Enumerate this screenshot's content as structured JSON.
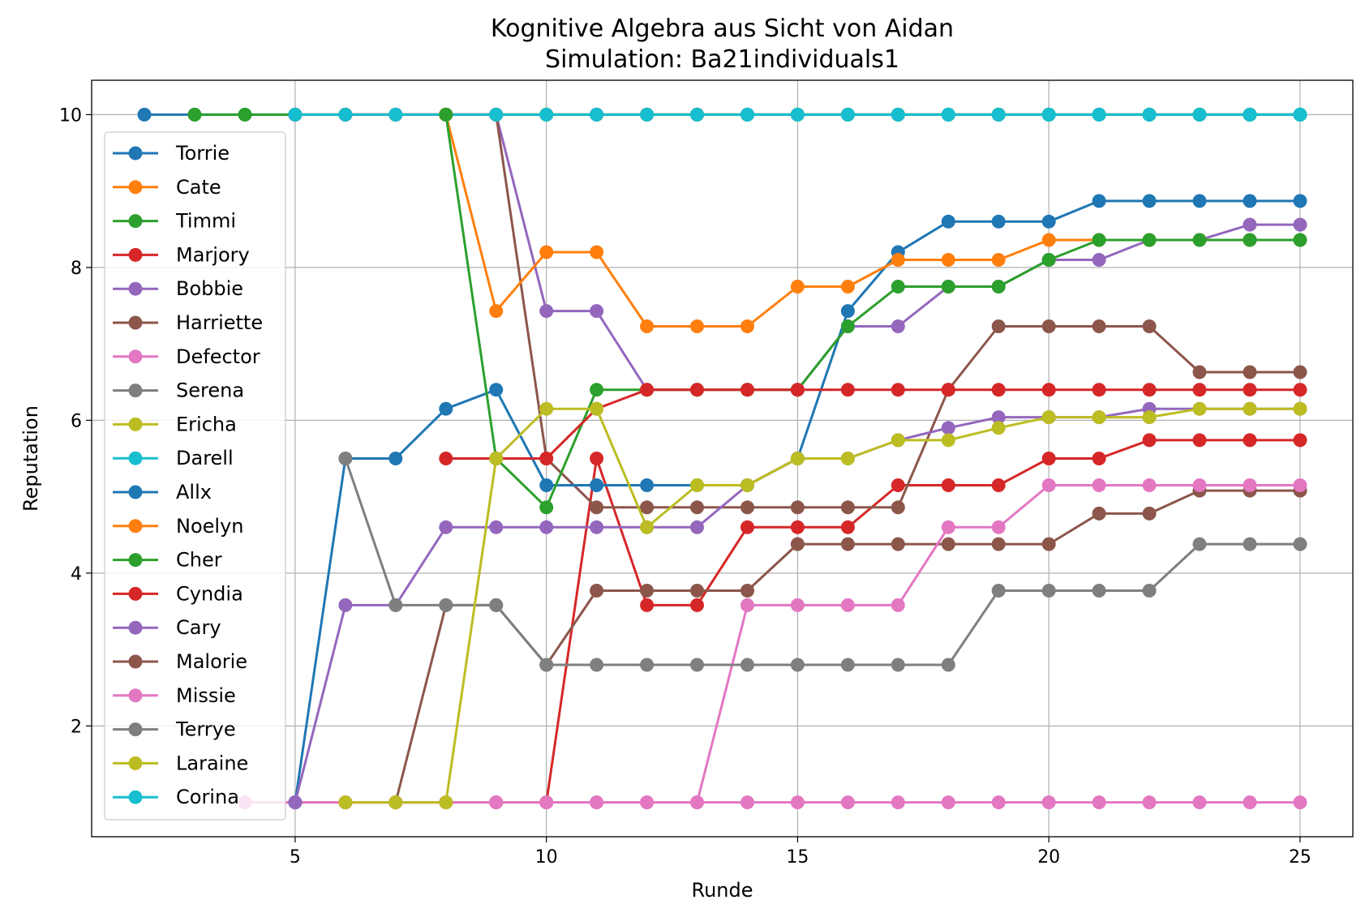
{
  "chart_data": {
    "type": "line",
    "title": "Kognitive Algebra aus Sicht von Aidan",
    "subtitle": "Simulation: Ba21individuals1",
    "xlabel": "Runde",
    "ylabel": "Reputation",
    "xlim": [
      0.95,
      26.05
    ],
    "ylim": [
      0.55,
      10.45
    ],
    "xticks": [
      5,
      10,
      15,
      20,
      25
    ],
    "yticks": [
      2,
      4,
      6,
      8,
      10
    ],
    "grid": true,
    "legend_position": "left",
    "series": [
      {
        "name": "Torrie",
        "color": "#1f77b4",
        "x": [
          2,
          3,
          4,
          5,
          6,
          7,
          8,
          9,
          10,
          11,
          12,
          13,
          14,
          15,
          16,
          17,
          18,
          19,
          20,
          21,
          22,
          23,
          24,
          25
        ],
        "y": [
          10,
          10,
          10,
          10,
          10,
          10,
          10,
          10,
          10,
          10,
          10,
          10,
          10,
          10,
          10,
          10,
          10,
          10,
          10,
          10,
          10,
          10,
          10,
          10
        ]
      },
      {
        "name": "Cate",
        "color": "#ff7f0e",
        "x": [
          5,
          6,
          7,
          8,
          9,
          10,
          11,
          12,
          13,
          14,
          15,
          16,
          17,
          18,
          19,
          20,
          21,
          22,
          23,
          24,
          25
        ],
        "y": [
          10,
          10,
          10,
          10,
          10,
          10,
          10,
          10,
          10,
          10,
          10,
          10,
          10,
          10,
          10,
          10,
          10,
          10,
          10,
          10,
          10
        ]
      },
      {
        "name": "Timmi",
        "color": "#2ca02c",
        "x": [
          3,
          4,
          5,
          6,
          7,
          8,
          9,
          10,
          11,
          12,
          13,
          14,
          15,
          16,
          17,
          18,
          19,
          20,
          21,
          22,
          23,
          24,
          25
        ],
        "y": [
          10,
          10,
          10,
          10,
          10,
          10,
          10,
          10,
          10,
          10,
          10,
          10,
          10,
          10,
          10,
          10,
          10,
          10,
          10,
          10,
          10,
          10,
          10
        ]
      },
      {
        "name": "Marjory",
        "color": "#d62728",
        "x": [
          4,
          5,
          6,
          7,
          8,
          9,
          10,
          11,
          12,
          13,
          14,
          15,
          16,
          17,
          18,
          19,
          20,
          21,
          22,
          23,
          24,
          25
        ],
        "y": [
          1,
          1,
          1,
          1,
          1,
          1,
          1,
          5.5,
          3.58,
          3.58,
          4.6,
          4.6,
          4.6,
          5.15,
          5.15,
          5.15,
          5.5,
          5.5,
          5.74,
          5.74,
          5.74,
          5.74
        ]
      },
      {
        "name": "Bobbie",
        "color": "#9467bd",
        "x": [
          5,
          6,
          7,
          8,
          9,
          10,
          11,
          12,
          13,
          14,
          15,
          16,
          17,
          18,
          19,
          20,
          21,
          22,
          23,
          24,
          25
        ],
        "y": [
          10,
          10,
          10,
          10,
          10,
          7.43,
          7.43,
          6.4,
          6.4,
          6.4,
          6.4,
          7.23,
          7.23,
          7.75,
          7.75,
          8.1,
          8.1,
          8.36,
          8.36,
          8.56,
          8.56
        ]
      },
      {
        "name": "Harriette",
        "color": "#8c564b",
        "x": [
          6,
          7,
          8,
          9,
          10,
          11,
          12,
          13,
          14,
          15,
          16,
          17,
          18,
          19,
          20,
          21,
          22,
          23,
          24,
          25
        ],
        "y": [
          10,
          10,
          10,
          10,
          5.5,
          4.86,
          4.86,
          4.86,
          4.86,
          4.86,
          4.86,
          4.86,
          6.4,
          7.23,
          7.23,
          7.23,
          7.23,
          6.63,
          6.63,
          6.63
        ]
      },
      {
        "name": "Defector",
        "color": "#e377c2",
        "x": [
          4,
          5,
          6,
          7,
          8,
          9,
          10,
          11,
          12,
          13,
          14,
          15,
          16,
          17,
          18,
          19,
          20,
          21,
          22,
          23,
          24,
          25
        ],
        "y": [
          1,
          1,
          1,
          1,
          1,
          1,
          1,
          1,
          1,
          1,
          1,
          1,
          1,
          1,
          1,
          1,
          1,
          1,
          1,
          1,
          1,
          1
        ]
      },
      {
        "name": "Serena",
        "color": "#7f7f7f",
        "x": [
          11,
          12,
          13,
          14,
          15,
          16,
          17,
          18,
          19,
          20,
          21,
          22,
          23,
          24,
          25
        ],
        "y": [
          10,
          10,
          10,
          10,
          10,
          10,
          10,
          10,
          10,
          10,
          10,
          10,
          10,
          10,
          10
        ]
      },
      {
        "name": "Ericha",
        "color": "#bcbd22",
        "x": [
          12,
          13,
          14,
          15,
          16,
          17,
          18,
          19,
          20,
          21,
          22,
          23,
          24,
          25
        ],
        "y": [
          10,
          10,
          10,
          10,
          10,
          10,
          10,
          10,
          10,
          10,
          10,
          10,
          10,
          10
        ]
      },
      {
        "name": "Darell",
        "color": "#17becf",
        "x": [
          5,
          6,
          7,
          8,
          9,
          10,
          11,
          12,
          13,
          14,
          15,
          16,
          17,
          18,
          19,
          20,
          21,
          22,
          23,
          24,
          25
        ],
        "y": [
          10,
          10,
          10,
          10,
          10,
          10,
          10,
          10,
          10,
          10,
          10,
          10,
          10,
          10,
          10,
          10,
          10,
          10,
          10,
          10,
          10
        ]
      },
      {
        "name": "Allx",
        "color": "#1f77b4",
        "x": [
          5,
          6,
          7,
          8,
          9,
          10,
          11,
          12,
          13,
          14,
          15,
          16,
          17,
          18,
          19,
          20,
          21,
          22,
          23,
          24,
          25
        ],
        "y": [
          1,
          5.5,
          5.5,
          6.15,
          6.4,
          5.15,
          5.15,
          5.15,
          5.15,
          5.15,
          5.5,
          7.43,
          8.2,
          8.6,
          8.6,
          8.6,
          8.87,
          8.87,
          8.87,
          8.87,
          8.87
        ]
      },
      {
        "name": "Noelyn",
        "color": "#ff7f0e",
        "x": [
          8,
          9,
          10,
          11,
          12,
          13,
          14,
          15,
          16,
          17,
          18,
          19,
          20,
          21,
          22,
          23,
          24,
          25
        ],
        "y": [
          10,
          7.43,
          8.2,
          8.2,
          7.23,
          7.23,
          7.23,
          7.75,
          7.75,
          8.1,
          8.1,
          8.1,
          8.36,
          8.36,
          8.36,
          8.36,
          8.36,
          8.36
        ]
      },
      {
        "name": "Cher",
        "color": "#2ca02c",
        "x": [
          8,
          9,
          10,
          11,
          12,
          13,
          14,
          15,
          16,
          17,
          18,
          19,
          20,
          21,
          22,
          23,
          24,
          25
        ],
        "y": [
          10,
          5.5,
          4.86,
          6.4,
          6.4,
          6.4,
          6.4,
          6.4,
          7.23,
          7.75,
          7.75,
          7.75,
          8.1,
          8.36,
          8.36,
          8.36,
          8.36,
          8.36
        ]
      },
      {
        "name": "Cyndia",
        "color": "#d62728",
        "x": [
          8,
          9,
          10,
          11,
          12,
          13,
          14,
          15,
          16,
          17,
          18,
          19,
          20,
          21,
          22,
          23,
          24,
          25
        ],
        "y": [
          5.5,
          5.5,
          5.5,
          6.15,
          6.4,
          6.4,
          6.4,
          6.4,
          6.4,
          6.4,
          6.4,
          6.4,
          6.4,
          6.4,
          6.4,
          6.4,
          6.4,
          6.4
        ]
      },
      {
        "name": "Cary",
        "color": "#9467bd",
        "x": [
          5,
          6,
          7,
          8,
          9,
          10,
          11,
          12,
          13,
          14,
          15,
          16,
          17,
          18,
          19,
          20,
          21,
          22,
          23,
          24,
          25
        ],
        "y": [
          1,
          3.58,
          3.58,
          4.6,
          4.6,
          4.6,
          4.6,
          4.6,
          4.6,
          5.15,
          5.5,
          5.5,
          5.74,
          5.9,
          6.04,
          6.04,
          6.04,
          6.15,
          6.15,
          6.15,
          6.15
        ]
      },
      {
        "name": "Malorie",
        "color": "#8c564b",
        "x": [
          7,
          8,
          9,
          10,
          11,
          12,
          13,
          14,
          15,
          16,
          17,
          18,
          19,
          20,
          21,
          22,
          23,
          24,
          25
        ],
        "y": [
          1,
          3.58,
          3.58,
          2.8,
          3.77,
          3.77,
          3.77,
          3.77,
          4.38,
          4.38,
          4.38,
          4.38,
          4.38,
          4.38,
          4.78,
          4.78,
          5.08,
          5.08,
          5.08
        ]
      },
      {
        "name": "Missie",
        "color": "#e377c2",
        "x": [
          10,
          11,
          12,
          13,
          14,
          15,
          16,
          17,
          18,
          19,
          20,
          21,
          22,
          23,
          24,
          25
        ],
        "y": [
          1,
          1,
          1,
          1,
          3.58,
          3.58,
          3.58,
          3.58,
          4.6,
          4.6,
          5.15,
          5.15,
          5.15,
          5.15,
          5.15,
          5.15
        ]
      },
      {
        "name": "Terrye",
        "color": "#7f7f7f",
        "x": [
          6,
          7,
          8,
          9,
          10,
          11,
          12,
          13,
          14,
          15,
          16,
          17,
          18,
          19,
          20,
          21,
          22,
          23,
          24,
          25
        ],
        "y": [
          5.5,
          3.58,
          3.58,
          3.58,
          2.8,
          2.8,
          2.8,
          2.8,
          2.8,
          2.8,
          2.8,
          2.8,
          2.8,
          3.77,
          3.77,
          3.77,
          3.77,
          4.38,
          4.38,
          4.38
        ]
      },
      {
        "name": "Laraine",
        "color": "#bcbd22",
        "x": [
          6,
          7,
          8,
          9,
          10,
          11,
          12,
          13,
          14,
          15,
          16,
          17,
          18,
          19,
          20,
          21,
          22,
          23,
          24,
          25
        ],
        "y": [
          1,
          1,
          1,
          5.5,
          6.15,
          6.15,
          4.6,
          5.15,
          5.15,
          5.5,
          5.5,
          5.74,
          5.74,
          5.9,
          6.04,
          6.04,
          6.04,
          6.15,
          6.15,
          6.15
        ]
      },
      {
        "name": "Corina",
        "color": "#17becf",
        "x": [
          14,
          15,
          16,
          17,
          18,
          19,
          20,
          21,
          22,
          23,
          24,
          25
        ],
        "y": [
          10,
          10,
          10,
          10,
          10,
          10,
          10,
          10,
          10,
          10,
          10,
          10
        ]
      }
    ]
  }
}
